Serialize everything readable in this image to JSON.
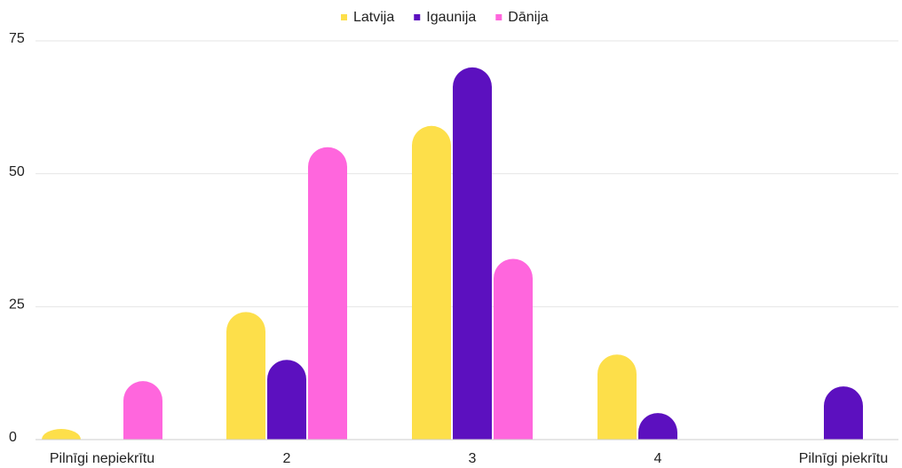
{
  "chart_data": {
    "type": "bar",
    "categories": [
      "Pilnīgi nepiekrītu",
      "2",
      "3",
      "4",
      "Pilnīgi piekrītu"
    ],
    "series": [
      {
        "name": "Latvija",
        "color": "#fddf4a",
        "values": [
          2,
          24,
          59,
          16,
          0
        ]
      },
      {
        "name": "Igaunija",
        "color": "#5c10bf",
        "values": [
          0,
          15,
          70,
          5,
          10
        ]
      },
      {
        "name": "Dānija",
        "color": "#ff66dd",
        "values": [
          11,
          55,
          34,
          0,
          0
        ]
      }
    ],
    "ylim": [
      0,
      75
    ],
    "yticks": [
      0,
      25,
      50,
      75
    ],
    "grid": true,
    "legend": "top"
  }
}
